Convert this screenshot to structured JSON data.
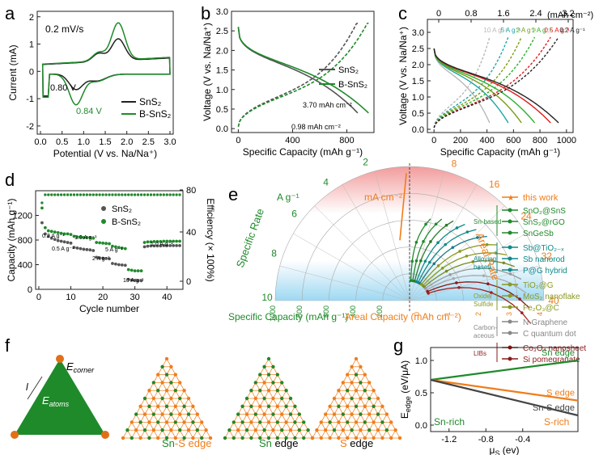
{
  "colors": {
    "black": "#222222",
    "green": "#1f8a2a",
    "orange": "#f07d1a",
    "gray": "#9a9a9a",
    "red": "#c0392b",
    "teal": "#0f8a8a",
    "olive": "#8a9a20",
    "darkred": "#8b1a1a"
  },
  "labels": {
    "a": "a",
    "b": "b",
    "c": "c",
    "d": "d",
    "e": "e",
    "f": "f",
    "g": "g",
    "a_rate": "0.2 mV/s",
    "a_peak1": "0.80 V",
    "a_peak2": "0.84 V",
    "b_ann1": "3.70 mAh cm⁻²",
    "b_ann2": "0.98 mAh cm⁻²",
    "c_top_unit": "(mAh cm⁻²)",
    "d_rates": [
      "0.2 A g⁻¹",
      "0.5 A g⁻¹",
      "1.0 A g⁻¹",
      "2 A g⁻¹",
      "5 A g⁻¹",
      "10 A g⁻¹",
      "1.0 A g⁻¹"
    ],
    "e_left_unit": "A g⁻¹",
    "e_right_unit": "mA cm⁻²",
    "e_left_title": "Specific Rate",
    "e_right_title": "Areal Rate",
    "e_bottom_left": "Specific Capacity (mAh g⁻¹)",
    "e_bottom_right": "Areal Capacity (mAh cm⁻²)",
    "f_corner": "E",
    "f_corner_sub": "corner",
    "f_atoms": "E",
    "f_atoms_sub": "atoms",
    "f_l": "l",
    "f_edges": [
      {
        "a": "Sn",
        "b": "-S edge"
      },
      {
        "a": "Sn",
        "b": " edge"
      },
      {
        "a": "S",
        "b": " edge"
      }
    ],
    "g_snrich": "Sn-rich",
    "g_srich": "S-rich"
  },
  "legend_e": {
    "this_work": "this work",
    "groups": [
      {
        "name": "Sn-based",
        "items": [
          "SnO₂@SnS",
          "SnS₂@rGO",
          "SnGeSb"
        ]
      },
      {
        "name": "Alloying based",
        "items": [
          "Sb@TiO₂₋ₓ",
          "Sb nanorod",
          "P@G hybrid"
        ]
      },
      {
        "name": "Oxide/ Sulfide",
        "items": [
          "TiO₂@G",
          "MoS₂ nanoflake",
          "Fe₂O₃@C"
        ]
      },
      {
        "name": "Carbon- aceous",
        "items": [
          "N-Graphene",
          "C quantum dot"
        ]
      },
      {
        "name": "LIBs",
        "items": [
          "Co₃O₄ nanosheet",
          "Si pomegranate"
        ]
      }
    ]
  },
  "chart_data": [
    {
      "panel": "a",
      "type": "line",
      "xlabel": "Potential (V vs. Na/Na⁺)",
      "ylabel": "Current (mA)",
      "xlim": [
        0,
        3
      ],
      "ylim": [
        -2.3,
        2.2
      ],
      "xticks": [
        "0.0",
        "0.5",
        "1.0",
        "1.5",
        "2.0",
        "2.5",
        "3.0"
      ],
      "yticks": [
        "-2",
        "-1",
        "0",
        "1",
        "2"
      ],
      "legend_position": "lower-right",
      "series": [
        {
          "name": "SnS₂",
          "color": "#222222"
        },
        {
          "name": "B-SnS₂",
          "color": "#1f8a2a"
        }
      ]
    },
    {
      "panel": "b",
      "type": "line",
      "xlabel": "Specific Capacity (mAh g⁻¹)",
      "ylabel": "Voltage (V vs. Na/Na⁺)",
      "xlim": [
        -50,
        1000
      ],
      "ylim": [
        -0.1,
        3.0
      ],
      "xticks": [
        "0",
        "400",
        "800"
      ],
      "yticks": [
        "0.0",
        "0.5",
        "1.0",
        "1.5",
        "2.0",
        "2.5",
        "3.0"
      ],
      "legend_position": "middle-right",
      "series": [
        {
          "name": "SnS₂",
          "color": "#555555",
          "discharge_end": 880
        },
        {
          "name": "B-SnS₂",
          "color": "#1f8a2a",
          "discharge_end": 960
        }
      ]
    },
    {
      "panel": "c",
      "type": "line",
      "xlabel": "Specific Capacity (mAh g⁻¹)",
      "ylabel": "Voltage (V vs. Na/Na⁺)",
      "xlim": [
        -50,
        1050
      ],
      "ylim": [
        -0.1,
        3.4
      ],
      "xticks": [
        "0",
        "200",
        "400",
        "600",
        "800",
        "1000"
      ],
      "yticks": [
        "0.0",
        "0.5",
        "1.0",
        "1.5",
        "2.0",
        "2.5",
        "3.0"
      ],
      "top_xticks": [
        "0",
        "0.8",
        "1.6",
        "2.4",
        "3.2"
      ],
      "series": [
        {
          "name": "10 A g⁻¹",
          "color": "#b8b8b8",
          "end": 420
        },
        {
          "name": "5 A g⁻¹",
          "color": "#1aa6a6",
          "end": 560
        },
        {
          "name": "2 A g⁻¹",
          "color": "#7a9a10",
          "end": 660
        },
        {
          "name": "1 A g⁻¹",
          "color": "#2bb02b",
          "end": 760
        },
        {
          "name": "0.5 A g⁻¹",
          "color": "#e31a1a",
          "end": 880
        },
        {
          "name": "0.2 A g⁻¹",
          "color": "#222222",
          "end": 940
        }
      ]
    },
    {
      "panel": "d",
      "type": "scatter",
      "xlabel": "Cycle number",
      "ylabel": "Capacity (mAh g⁻¹)",
      "ylabel_right": "Efficiency (× 100%)",
      "xlim": [
        -1,
        45
      ],
      "ylim": [
        0,
        1600
      ],
      "xticks": [
        "0",
        "10",
        "20",
        "30",
        "40"
      ],
      "yticks": [
        "0",
        "400",
        "800",
        "1200"
      ],
      "yticks_right": [
        "0",
        "40",
        "80"
      ],
      "series": [
        {
          "name": "SnS₂",
          "color": "#555555",
          "values": [
            1080,
            900,
            860,
            830,
            810,
            790,
            780,
            770,
            760,
            750,
            680,
            670,
            660,
            650,
            645,
            640,
            630,
            520,
            510,
            505,
            500,
            495,
            420,
            410,
            400,
            395,
            390,
            160,
            150,
            145,
            140,
            140,
            690,
            700,
            705,
            705,
            705,
            705,
            710,
            710,
            710,
            710,
            710,
            710
          ]
        },
        {
          "name": "B-SnS₂",
          "color": "#1f8a2a",
          "values": [
            1320,
            1000,
            950,
            940,
            930,
            920,
            910,
            900,
            900,
            890,
            860,
            850,
            850,
            840,
            840,
            840,
            830,
            760,
            755,
            750,
            745,
            740,
            700,
            690,
            680,
            670,
            660,
            320,
            310,
            300,
            300,
            300,
            760,
            770,
            770,
            775,
            775,
            775,
            780,
            780,
            780,
            780,
            780,
            780
          ]
        }
      ]
    },
    {
      "panel": "e",
      "type": "polar",
      "left_scale": [
        "2",
        "4",
        "6",
        "8",
        "10"
      ],
      "right_scale": [
        "8",
        "16",
        "24",
        "32",
        "40"
      ],
      "bottom_left_ticks": [
        "1000",
        "800",
        "600",
        "400",
        "200"
      ],
      "bottom_right_ticks": [
        "0",
        "1",
        "2",
        "3",
        "4"
      ]
    },
    {
      "panel": "g",
      "type": "line",
      "xlabel": "μ",
      "xlabel_sub": "S",
      "xlabel_unit": " (ev)",
      "ylabel": "E",
      "ylabel_sub": "edge",
      "ylabel_unit": " (eV/μA)",
      "xlim": [
        -1.4,
        0.2
      ],
      "ylim": [
        -0.1,
        1.2
      ],
      "xticks": [
        "-1.2",
        "-0.8",
        "-0.4"
      ],
      "yticks": [
        "0.0",
        "0.5",
        "1.0"
      ],
      "series": [
        {
          "name": "Sn edge",
          "color": "#1f8a2a",
          "x": [
            -1.4,
            0.2
          ],
          "y": [
            0.7,
            1.0
          ]
        },
        {
          "name": "S edge",
          "color": "#f07d1a",
          "x": [
            -1.4,
            0.2
          ],
          "y": [
            0.7,
            0.38
          ]
        },
        {
          "name": "Sn-S edge",
          "color": "#444444",
          "x": [
            -1.4,
            0.2
          ],
          "y": [
            0.7,
            0.15
          ]
        }
      ]
    }
  ]
}
